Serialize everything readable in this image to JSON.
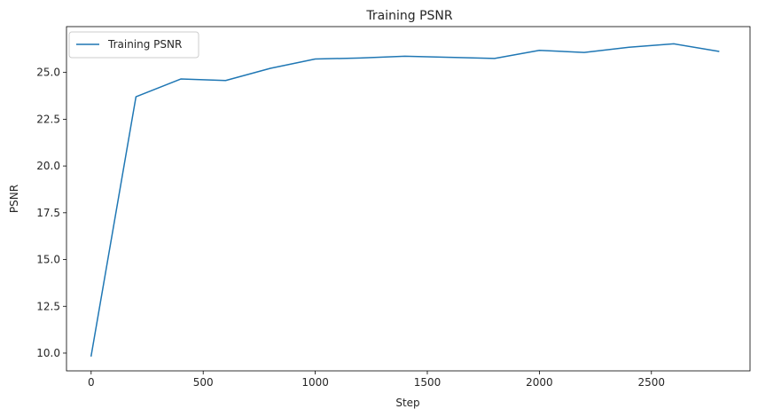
{
  "chart_data": {
    "type": "line",
    "title": "Training PSNR",
    "xlabel": "Step",
    "ylabel": "PSNR",
    "xlim": [
      -110,
      2940
    ],
    "ylim": [
      9.05,
      27.45
    ],
    "xticks": [
      0,
      500,
      1000,
      1500,
      2000,
      2500
    ],
    "xtick_labels": [
      "0",
      "500",
      "1000",
      "1500",
      "2000",
      "2500"
    ],
    "yticks": [
      10.0,
      12.5,
      15.0,
      17.5,
      20.0,
      22.5,
      25.0
    ],
    "ytick_labels": [
      "10.0",
      "12.5",
      "15.0",
      "17.5",
      "20.0",
      "22.5",
      "25.0"
    ],
    "grid": false,
    "legend_position": "top-left",
    "series": [
      {
        "name": "Training PSNR",
        "color": "#1f77b4",
        "x": [
          0,
          200,
          400,
          600,
          800,
          1000,
          1200,
          1400,
          1600,
          1800,
          2000,
          2200,
          2400,
          2600,
          2800
        ],
        "y": [
          9.85,
          23.7,
          24.65,
          24.57,
          25.22,
          25.72,
          25.77,
          25.87,
          25.81,
          25.75,
          26.18,
          26.07,
          26.35,
          26.53,
          26.13
        ]
      }
    ]
  }
}
